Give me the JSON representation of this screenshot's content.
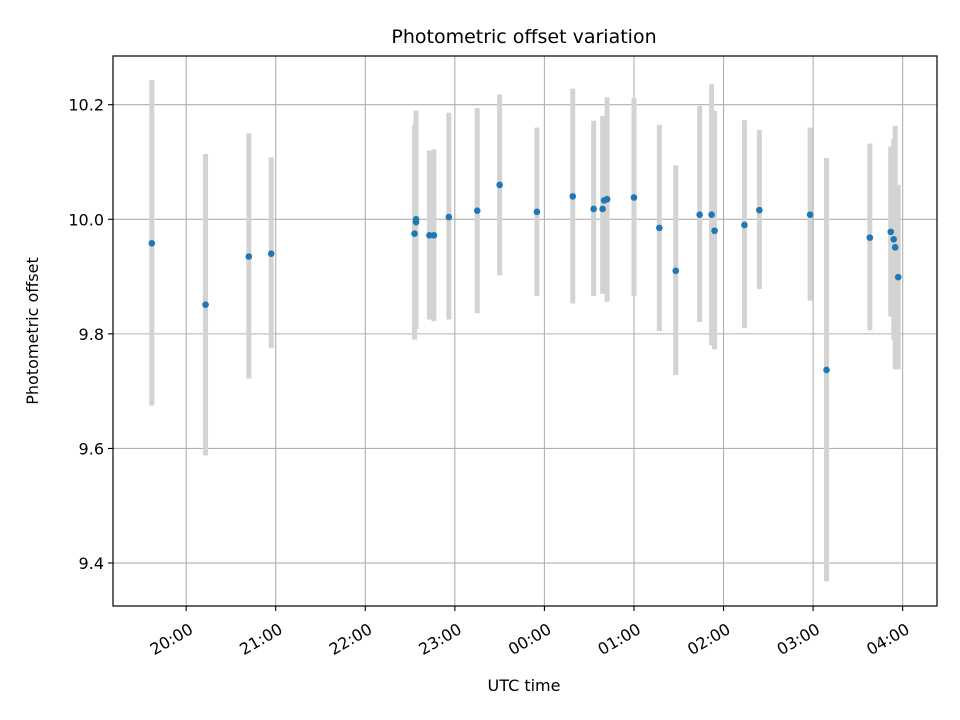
{
  "chart_data": {
    "type": "scatter",
    "title": "Photometric offset variation",
    "xlabel": "UTC time",
    "ylabel": "Photometric offset",
    "grid": true,
    "legend": "none",
    "colors": {
      "point": "#1f77b4",
      "errorbar": "#d3d3d3",
      "grid": "#b0b0b0"
    },
    "xlim": [
      "19:11",
      "04:23"
    ],
    "ylim": [
      9.325,
      10.285
    ],
    "x_ticks": [
      "20:00",
      "21:00",
      "22:00",
      "23:00",
      "00:00",
      "01:00",
      "02:00",
      "03:00",
      "04:00"
    ],
    "y_ticks": [
      "9.4",
      "9.6",
      "9.8",
      "10.0",
      "10.2"
    ],
    "points": [
      {
        "x": "19:37",
        "y": 9.958,
        "err_low": 9.675,
        "err_high": 10.243
      },
      {
        "x": "20:13",
        "y": 9.851,
        "err_low": 9.588,
        "err_high": 10.114
      },
      {
        "x": "20:42",
        "y": 9.935,
        "err_low": 9.722,
        "err_high": 10.15
      },
      {
        "x": "20:57",
        "y": 9.94,
        "err_low": 9.775,
        "err_high": 10.108
      },
      {
        "x": "22:33",
        "y": 9.975,
        "err_low": 9.79,
        "err_high": 10.165
      },
      {
        "x": "22:34",
        "y": 9.995,
        "err_low": 9.808,
        "err_high": 10.19
      },
      {
        "x": "22:34",
        "y": 10.0,
        "err_low": 9.81,
        "err_high": 10.185
      },
      {
        "x": "22:43",
        "y": 9.972,
        "err_low": 9.825,
        "err_high": 10.12
      },
      {
        "x": "22:46",
        "y": 9.972,
        "err_low": 9.822,
        "err_high": 10.122
      },
      {
        "x": "22:56",
        "y": 10.004,
        "err_low": 9.825,
        "err_high": 10.186
      },
      {
        "x": "23:15",
        "y": 10.015,
        "err_low": 9.836,
        "err_high": 10.194
      },
      {
        "x": "23:30",
        "y": 10.06,
        "err_low": 9.902,
        "err_high": 10.218
      },
      {
        "x": "23:55",
        "y": 10.013,
        "err_low": 9.866,
        "err_high": 10.16
      },
      {
        "x": "00:19",
        "y": 10.04,
        "err_low": 9.853,
        "err_high": 10.228
      },
      {
        "x": "00:33",
        "y": 10.018,
        "err_low": 9.866,
        "err_high": 10.172
      },
      {
        "x": "00:39",
        "y": 10.018,
        "err_low": 9.87,
        "err_high": 10.18
      },
      {
        "x": "00:40",
        "y": 10.033,
        "err_low": 9.885,
        "err_high": 10.15
      },
      {
        "x": "00:42",
        "y": 10.035,
        "err_low": 9.856,
        "err_high": 10.213
      },
      {
        "x": "01:00",
        "y": 10.038,
        "err_low": 9.866,
        "err_high": 10.212
      },
      {
        "x": "01:17",
        "y": 9.985,
        "err_low": 9.805,
        "err_high": 10.165
      },
      {
        "x": "01:28",
        "y": 9.91,
        "err_low": 9.728,
        "err_high": 10.094
      },
      {
        "x": "01:44",
        "y": 10.008,
        "err_low": 9.821,
        "err_high": 10.198
      },
      {
        "x": "01:52",
        "y": 10.008,
        "err_low": 9.78,
        "err_high": 10.236
      },
      {
        "x": "01:54",
        "y": 9.98,
        "err_low": 9.773,
        "err_high": 10.189
      },
      {
        "x": "02:14",
        "y": 9.99,
        "err_low": 9.81,
        "err_high": 10.173
      },
      {
        "x": "02:24",
        "y": 10.016,
        "err_low": 9.878,
        "err_high": 10.156
      },
      {
        "x": "02:58",
        "y": 10.008,
        "err_low": 9.858,
        "err_high": 10.16
      },
      {
        "x": "03:09",
        "y": 9.737,
        "err_low": 9.368,
        "err_high": 10.107
      },
      {
        "x": "03:38",
        "y": 9.968,
        "err_low": 9.806,
        "err_high": 10.132
      },
      {
        "x": "03:52",
        "y": 9.978,
        "err_low": 9.83,
        "err_high": 10.127
      },
      {
        "x": "03:54",
        "y": 9.965,
        "err_low": 9.79,
        "err_high": 10.14
      },
      {
        "x": "03:55",
        "y": 9.951,
        "err_low": 9.738,
        "err_high": 10.163
      },
      {
        "x": "03:57",
        "y": 9.899,
        "err_low": 9.738,
        "err_high": 10.06
      }
    ]
  }
}
